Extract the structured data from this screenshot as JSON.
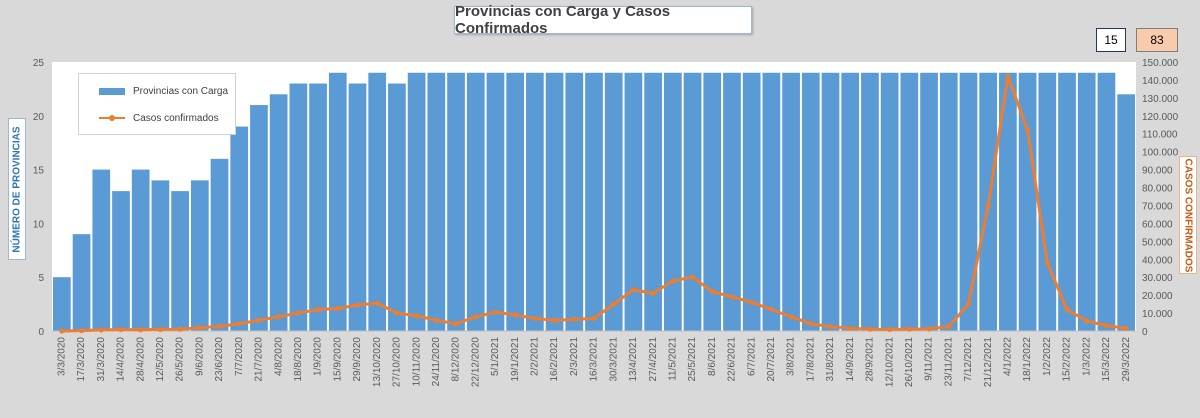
{
  "chart_data": {
    "type": "bar+line",
    "title": "Provincias con Carga y Casos Confirmados",
    "y_left_label": "NÚMERO  DE  PROVINCIAS",
    "y_right_label": "CASOS  CONFIRMADOS",
    "y_left_range": [
      0,
      25
    ],
    "y_left_ticks": [
      "0",
      "5",
      "10",
      "15",
      "20",
      "25"
    ],
    "y_right_range": [
      0,
      150000
    ],
    "y_right_ticks": [
      "0",
      "10.000",
      "20.000",
      "30.000",
      "40.000",
      "50.000",
      "60.000",
      "70.000",
      "80.000",
      "90.000",
      "100.000",
      "110.000",
      "120.000",
      "130.000",
      "140.000",
      "150.000"
    ],
    "x_tick_labels": [
      "3/3/2020",
      "17/3/2020",
      "31/3/2020",
      "14/4/2020",
      "28/4/2020",
      "12/5/2020",
      "26/5/2020",
      "9/6/2020",
      "23/6/2020",
      "7/7/2020",
      "21/7/2020",
      "4/8/2020",
      "18/8/2020",
      "1/9/2020",
      "15/9/2020",
      "29/9/2020",
      "13/10/2020",
      "27/10/2020",
      "10/11/2020",
      "24/11/2020",
      "8/12/2020",
      "22/12/2020",
      "5/1/2021",
      "19/1/2021",
      "2/2/2021",
      "16/2/2021",
      "2/3/2021",
      "16/3/2021",
      "30/3/2021",
      "13/4/2021",
      "27/4/2021",
      "11/5/2021",
      "25/5/2021",
      "8/6/2021",
      "22/6/2021",
      "6/7/2021",
      "20/7/2021",
      "3/8/2021",
      "17/8/2021",
      "31/8/2021",
      "14/9/2021",
      "28/9/2021",
      "12/10/2021",
      "26/10/2021",
      "9/11/2021",
      "23/11/2021",
      "7/12/2021",
      "21/12/2021",
      "4/1/2022",
      "18/1/2022",
      "1/2/2022",
      "15/2/2022",
      "1/3/2022",
      "15/3/2022",
      "29/3/2022"
    ],
    "series": [
      {
        "name": "Provincias con Carga",
        "kind": "bar",
        "axis": "left",
        "color": "#5b9bd5",
        "values": [
          5,
          9,
          15,
          13,
          15,
          14,
          13,
          14,
          16,
          19,
          21,
          22,
          23,
          23,
          24,
          23,
          24,
          23,
          24,
          24,
          24,
          24,
          24,
          24,
          24,
          24,
          24,
          24,
          24,
          24,
          24,
          24,
          24,
          24,
          24,
          24,
          24,
          24,
          24,
          24,
          24,
          24,
          24,
          24,
          24,
          24,
          24,
          24,
          24,
          24,
          24,
          24,
          24,
          24,
          22
        ]
      },
      {
        "name": "Casos confirmados",
        "kind": "line",
        "axis": "right",
        "color": "#ed7d31",
        "values": [
          0,
          200,
          600,
          800,
          700,
          900,
          1000,
          1800,
          2600,
          4000,
          6000,
          8000,
          10000,
          12000,
          12500,
          14500,
          15500,
          10000,
          8500,
          6000,
          4000,
          8000,
          10500,
          9000,
          7000,
          6000,
          6500,
          7000,
          15000,
          23000,
          21000,
          28000,
          30000,
          22000,
          19000,
          16000,
          12000,
          8000,
          4000,
          2500,
          1500,
          1000,
          900,
          1000,
          1200,
          2500,
          15000,
          70000,
          142000,
          112000,
          38000,
          12000,
          5500,
          3000,
          1500
        ]
      }
    ],
    "legend_position": "top-left inside plot",
    "grid": false
  },
  "badges": {
    "provinces": "15",
    "cases": "83"
  },
  "colors": {
    "bar": "#5b9bd5",
    "line": "#ed7d31",
    "left_axis_text": "#2e75b6",
    "right_axis_text": "#c55a11"
  }
}
